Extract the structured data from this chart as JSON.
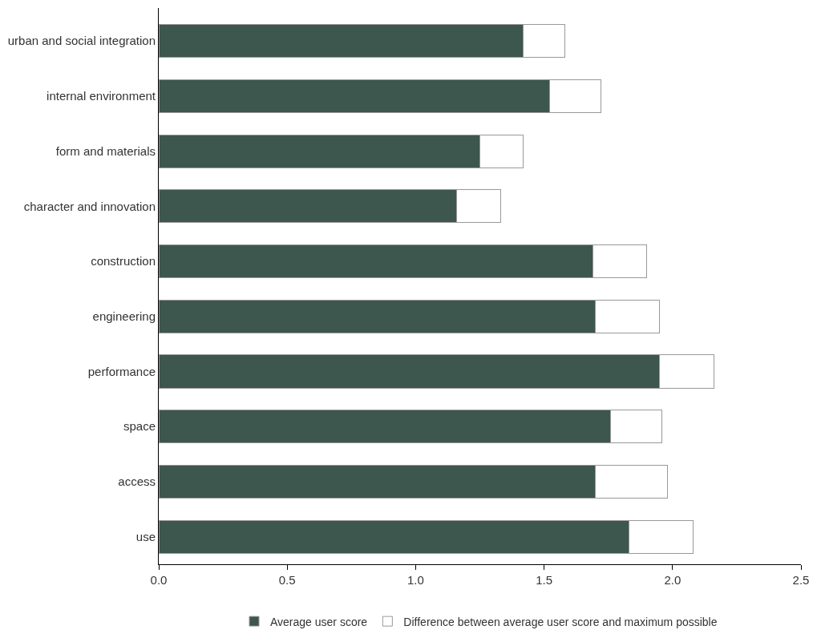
{
  "chart_data": {
    "type": "bar",
    "orientation": "horizontal",
    "stacked": true,
    "categories": [
      "urban and social integration",
      "internal environment",
      "form and materials",
      "character and innovation",
      "construction",
      "engineering",
      "performance",
      "space",
      "access",
      "use"
    ],
    "series": [
      {
        "name": "Average user score",
        "color": "#3d564e",
        "values": [
          1.42,
          1.52,
          1.25,
          1.16,
          1.69,
          1.7,
          1.95,
          1.76,
          1.7,
          1.83
        ]
      },
      {
        "name": "Difference between average user score and maximum possible",
        "color": "#ffffff",
        "values": [
          0.16,
          0.2,
          0.17,
          0.17,
          0.21,
          0.25,
          0.21,
          0.2,
          0.28,
          0.25
        ]
      }
    ],
    "xlim": [
      0,
      2.5
    ],
    "xticks": [
      {
        "value": 0,
        "label": "0.0"
      },
      {
        "value": 0.5,
        "label": "0.5"
      },
      {
        "value": 1,
        "label": "1.0"
      },
      {
        "value": 1.5,
        "label": "1.5"
      },
      {
        "value": 2,
        "label": "2.0"
      },
      {
        "value": 2.5,
        "label": "2.5"
      }
    ],
    "legend": "bottom"
  }
}
